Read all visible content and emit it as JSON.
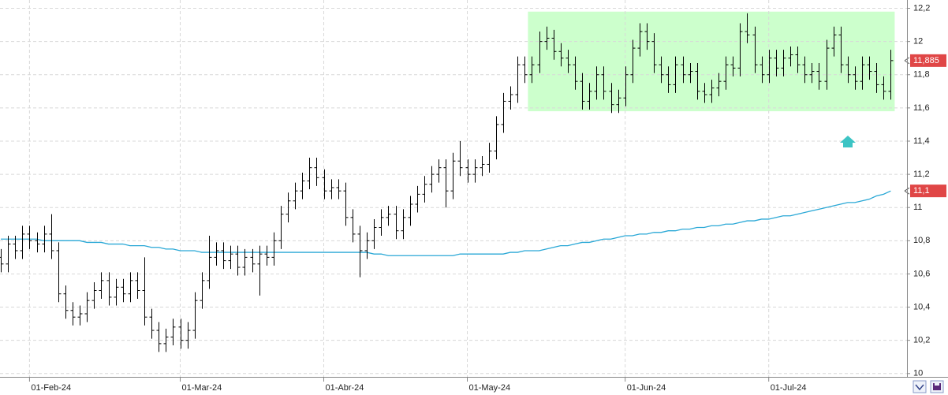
{
  "chart_data": {
    "type": "ohlc",
    "categories": [
      null,
      null,
      null,
      null,
      "01-Feb-24",
      null,
      null,
      null,
      null,
      null,
      null,
      null,
      null,
      null,
      null,
      null,
      null,
      null,
      null,
      null,
      null,
      null,
      null,
      null,
      null,
      "01-Mar-24",
      null,
      null,
      null,
      null,
      null,
      null,
      null,
      null,
      null,
      null,
      null,
      null,
      null,
      null,
      null,
      null,
      null,
      null,
      null,
      "01-Abr-24",
      null,
      null,
      null,
      null,
      null,
      null,
      null,
      null,
      null,
      null,
      null,
      null,
      null,
      null,
      null,
      null,
      null,
      null,
      null,
      "01-May-24",
      null,
      null,
      null,
      null,
      null,
      null,
      null,
      null,
      null,
      null,
      null,
      null,
      null,
      null,
      null,
      null,
      null,
      null,
      null,
      null,
      null,
      "01-Jun-24",
      null,
      null,
      null,
      null,
      null,
      null,
      null,
      null,
      null,
      null,
      null,
      null,
      null,
      null,
      null,
      null,
      null,
      null,
      null,
      "01-Jul-24",
      null,
      null,
      null,
      null,
      null,
      null,
      null,
      null,
      null,
      null,
      null,
      null,
      null,
      null,
      null,
      null,
      null
    ],
    "open": [
      10.7,
      10.66,
      10.78,
      10.74,
      10.84,
      10.8,
      10.78,
      10.84,
      10.74,
      10.48,
      10.38,
      10.34,
      10.36,
      10.44,
      10.5,
      10.56,
      10.46,
      10.52,
      10.48,
      10.56,
      10.5,
      10.34,
      10.26,
      10.18,
      10.22,
      10.28,
      10.2,
      10.26,
      10.44,
      10.56,
      10.7,
      10.74,
      10.68,
      10.72,
      10.64,
      10.7,
      10.66,
      10.72,
      10.7,
      10.8,
      10.96,
      11.04,
      11.1,
      11.16,
      11.24,
      11.18,
      11.1,
      11.12,
      11.1,
      10.94,
      10.84,
      10.74,
      10.8,
      10.88,
      10.94,
      10.96,
      10.86,
      10.94,
      11.02,
      11.08,
      11.14,
      11.2,
      11.24,
      11.1,
      11.28,
      11.24,
      11.2,
      11.24,
      11.26,
      11.34,
      11.5,
      11.64,
      11.68,
      11.86,
      11.8,
      11.86,
      12.0,
      12.02,
      11.94,
      11.9,
      11.86,
      11.76,
      11.64,
      11.7,
      11.8,
      11.7,
      11.62,
      11.66,
      11.8,
      11.96,
      12.06,
      12.0,
      11.86,
      11.8,
      11.74,
      11.86,
      11.8,
      11.82,
      11.7,
      11.68,
      11.72,
      11.76,
      11.86,
      11.84,
      12.06,
      12.04,
      11.86,
      11.8,
      11.9,
      11.84,
      11.9,
      11.92,
      11.86,
      11.8,
      11.82,
      11.76,
      11.96,
      12.04,
      11.86,
      11.8,
      11.76,
      11.86,
      11.82,
      11.74,
      11.7
    ],
    "high": [
      10.75,
      10.83,
      10.83,
      10.89,
      10.89,
      10.85,
      10.89,
      10.96,
      10.79,
      10.53,
      10.43,
      10.41,
      10.49,
      10.55,
      10.61,
      10.61,
      10.57,
      10.57,
      10.61,
      10.61,
      10.7,
      10.39,
      10.31,
      10.27,
      10.33,
      10.33,
      10.31,
      10.49,
      10.61,
      10.83,
      10.79,
      10.79,
      10.77,
      10.77,
      10.75,
      10.75,
      10.77,
      10.77,
      10.85,
      11.01,
      11.09,
      11.15,
      11.21,
      11.3,
      11.3,
      11.23,
      11.17,
      11.17,
      11.15,
      10.99,
      10.89,
      10.85,
      10.93,
      10.99,
      11.01,
      11.01,
      10.99,
      11.07,
      11.13,
      11.19,
      11.25,
      11.29,
      11.29,
      11.33,
      11.4,
      11.29,
      11.29,
      11.31,
      11.39,
      11.55,
      11.69,
      11.73,
      11.91,
      11.91,
      11.91,
      12.06,
      12.09,
      12.07,
      11.99,
      11.95,
      11.91,
      11.81,
      11.75,
      11.85,
      11.85,
      11.75,
      11.71,
      11.85,
      12.01,
      12.11,
      12.11,
      12.05,
      11.91,
      11.85,
      11.91,
      11.91,
      11.87,
      11.87,
      11.75,
      11.77,
      11.81,
      11.91,
      11.91,
      12.11,
      12.17,
      12.09,
      11.91,
      11.95,
      11.95,
      11.95,
      11.97,
      11.97,
      11.91,
      11.87,
      11.87,
      12.01,
      12.09,
      12.09,
      11.91,
      11.85,
      11.91,
      11.91,
      11.87,
      11.79,
      11.95
    ],
    "low": [
      10.61,
      10.61,
      10.69,
      10.69,
      10.75,
      10.73,
      10.73,
      10.69,
      10.43,
      10.33,
      10.29,
      10.29,
      10.31,
      10.39,
      10.45,
      10.41,
      10.41,
      10.43,
      10.43,
      10.45,
      10.29,
      10.21,
      10.13,
      10.13,
      10.17,
      10.15,
      10.15,
      10.21,
      10.39,
      10.51,
      10.65,
      10.63,
      10.63,
      10.59,
      10.59,
      10.61,
      10.47,
      10.65,
      10.65,
      10.75,
      10.91,
      10.99,
      11.05,
      11.11,
      11.13,
      11.05,
      11.05,
      11.05,
      10.89,
      10.79,
      10.58,
      10.69,
      10.75,
      10.83,
      10.89,
      10.81,
      10.81,
      10.89,
      10.97,
      11.03,
      11.09,
      11.15,
      11.0,
      11.05,
      11.19,
      11.15,
      11.15,
      11.19,
      11.21,
      11.29,
      11.45,
      11.59,
      11.63,
      11.75,
      11.75,
      11.81,
      11.95,
      11.89,
      11.85,
      11.81,
      11.71,
      11.59,
      11.59,
      11.65,
      11.65,
      11.57,
      11.57,
      11.61,
      11.75,
      11.91,
      11.95,
      11.81,
      11.75,
      11.69,
      11.69,
      11.75,
      11.75,
      11.65,
      11.63,
      11.63,
      11.67,
      11.71,
      11.79,
      11.79,
      11.99,
      11.81,
      11.75,
      11.75,
      11.79,
      11.79,
      11.85,
      11.81,
      11.75,
      11.75,
      11.71,
      11.71,
      11.91,
      11.81,
      11.75,
      11.71,
      11.71,
      11.77,
      11.69,
      11.65,
      11.65
    ],
    "close": [
      10.66,
      10.78,
      10.74,
      10.84,
      10.8,
      10.78,
      10.84,
      10.74,
      10.48,
      10.38,
      10.34,
      10.36,
      10.44,
      10.5,
      10.56,
      10.46,
      10.52,
      10.48,
      10.56,
      10.5,
      10.34,
      10.26,
      10.18,
      10.22,
      10.28,
      10.2,
      10.26,
      10.44,
      10.56,
      10.7,
      10.74,
      10.68,
      10.72,
      10.64,
      10.7,
      10.66,
      10.72,
      10.7,
      10.8,
      10.96,
      11.04,
      11.1,
      11.16,
      11.24,
      11.18,
      11.1,
      11.12,
      11.1,
      10.94,
      10.84,
      10.74,
      10.8,
      10.88,
      10.94,
      10.96,
      10.86,
      10.94,
      11.02,
      11.08,
      11.14,
      11.2,
      11.24,
      11.1,
      11.28,
      11.24,
      11.2,
      11.24,
      11.26,
      11.34,
      11.5,
      11.64,
      11.68,
      11.86,
      11.8,
      11.86,
      12.0,
      12.02,
      11.94,
      11.9,
      11.86,
      11.76,
      11.64,
      11.7,
      11.8,
      11.7,
      11.62,
      11.66,
      11.8,
      11.96,
      12.06,
      12.0,
      11.86,
      11.8,
      11.74,
      11.86,
      11.8,
      11.82,
      11.7,
      11.68,
      11.72,
      11.76,
      11.86,
      11.84,
      12.06,
      12.04,
      11.86,
      11.8,
      11.9,
      11.84,
      11.9,
      11.92,
      11.86,
      11.8,
      11.82,
      11.76,
      11.96,
      12.04,
      11.86,
      11.8,
      11.76,
      11.86,
      11.82,
      11.74,
      11.7,
      11.885
    ],
    "color": "#000000",
    "last_label": {
      "value": 11.885,
      "label": "11,885"
    },
    "label_color": "#e04646",
    "moving_average": {
      "color": "#2aa8d6",
      "values": [
        10.81,
        10.81,
        10.81,
        10.81,
        10.81,
        10.81,
        10.8,
        10.8,
        10.8,
        10.8,
        10.8,
        10.8,
        10.79,
        10.79,
        10.79,
        10.78,
        10.78,
        10.78,
        10.77,
        10.77,
        10.77,
        10.76,
        10.76,
        10.75,
        10.75,
        10.74,
        10.74,
        10.74,
        10.73,
        10.73,
        10.73,
        10.73,
        10.73,
        10.73,
        10.73,
        10.73,
        10.73,
        10.73,
        10.73,
        10.73,
        10.73,
        10.73,
        10.73,
        10.73,
        10.73,
        10.73,
        10.73,
        10.73,
        10.73,
        10.73,
        10.73,
        10.73,
        10.72,
        10.72,
        10.71,
        10.71,
        10.71,
        10.71,
        10.71,
        10.71,
        10.71,
        10.71,
        10.71,
        10.71,
        10.72,
        10.72,
        10.72,
        10.72,
        10.72,
        10.72,
        10.72,
        10.73,
        10.73,
        10.74,
        10.74,
        10.74,
        10.75,
        10.76,
        10.77,
        10.77,
        10.78,
        10.79,
        10.79,
        10.8,
        10.81,
        10.81,
        10.82,
        10.83,
        10.83,
        10.84,
        10.84,
        10.85,
        10.85,
        10.86,
        10.86,
        10.87,
        10.87,
        10.88,
        10.88,
        10.89,
        10.89,
        10.9,
        10.9,
        10.91,
        10.92,
        10.92,
        10.93,
        10.93,
        10.94,
        10.95,
        10.95,
        10.96,
        10.97,
        10.98,
        10.99,
        11.0,
        11.01,
        11.02,
        11.03,
        11.03,
        11.04,
        11.05,
        11.07,
        11.08,
        11.1
      ],
      "last_label": {
        "value": 11.1,
        "label": "11,1"
      }
    },
    "range_box": {
      "from": 74,
      "to": 124,
      "low": 11.58,
      "high": 12.18,
      "color": "#ccffcc"
    },
    "ylim": [
      9.98,
      12.25
    ],
    "yticks": [
      10,
      {
        "value": 10.2,
        "label": "10,2"
      },
      {
        "value": 10.4,
        "label": "10,4"
      },
      {
        "value": 10.6,
        "label": "10,6"
      },
      {
        "value": 10.8,
        "label": "10,8"
      },
      11,
      {
        "value": 11.2,
        "label": "11,2"
      },
      {
        "value": 11.4,
        "label": "11,4"
      },
      {
        "value": 11.6,
        "label": "11,6"
      },
      {
        "value": 11.8,
        "label": "11,8"
      },
      12,
      {
        "value": 12.2,
        "label": "12,2"
      }
    ],
    "grid": true
  }
}
